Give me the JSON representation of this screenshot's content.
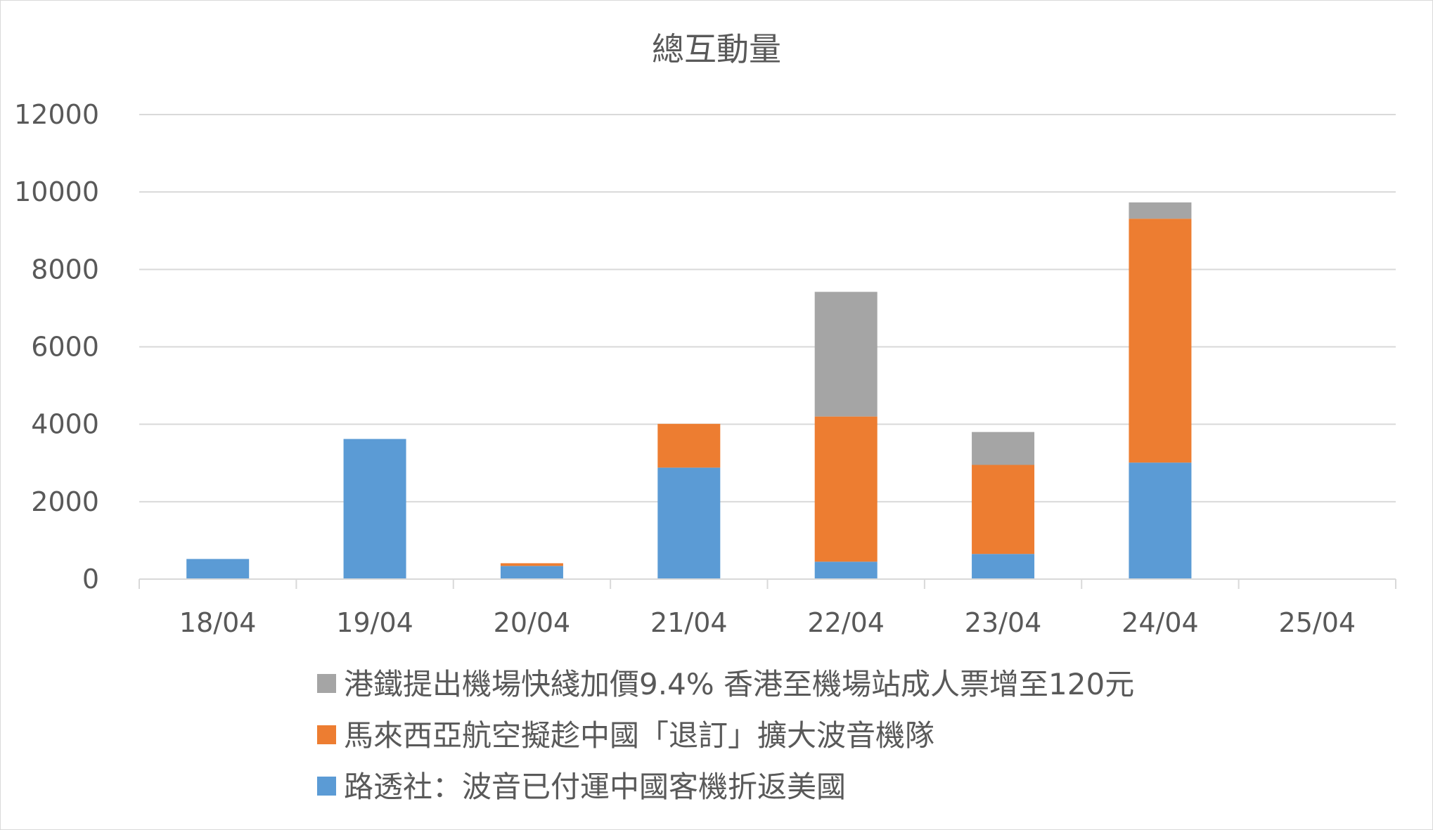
{
  "chart_data": {
    "type": "bar",
    "stacked": true,
    "title": "總互動量",
    "xlabel": "",
    "ylabel": "",
    "categories": [
      "18/04",
      "19/04",
      "20/04",
      "21/04",
      "22/04",
      "23/04",
      "24/04",
      "25/04"
    ],
    "ylim": [
      0,
      12000
    ],
    "yticks": [
      0,
      2000,
      4000,
      6000,
      8000,
      10000,
      12000
    ],
    "grid": true,
    "legend_position": "bottom",
    "series": [
      {
        "name": "路透社：波音已付運中國客機折返美國",
        "color": "#5B9BD5",
        "values": [
          520,
          3620,
          340,
          2880,
          450,
          650,
          3010,
          0
        ]
      },
      {
        "name": "馬來西亞航空擬趁中國「退訂」擴大波音機隊",
        "color": "#ED7D31",
        "values": [
          0,
          0,
          70,
          1130,
          3750,
          2300,
          6300,
          0
        ]
      },
      {
        "name": "港鐵提出機場快綫加價9.4% 香港至機場站成人票增至120元",
        "color": "#A5A5A5",
        "values": [
          0,
          0,
          0,
          0,
          3220,
          850,
          420,
          0
        ]
      }
    ]
  }
}
